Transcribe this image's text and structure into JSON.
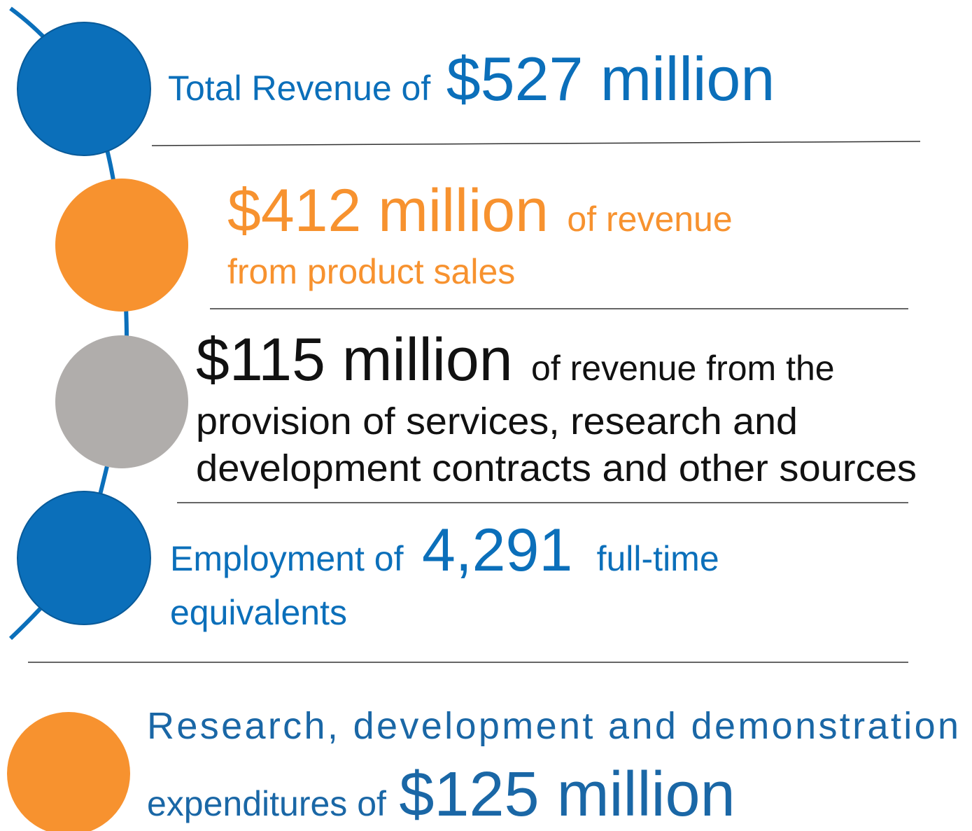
{
  "items": [
    [
      "Total Revenue of",
      "$527 million"
    ],
    [
      "$412 million",
      "of revenue",
      "from product sales"
    ],
    [
      "$115 million",
      "of revenue from the",
      "provision of services, research and",
      "development contracts and other sources"
    ],
    [
      "Employment of",
      "4,291",
      "full-time",
      "equivalents"
    ],
    [
      "Research, development and demonstration",
      "expenditures of",
      "$125 million"
    ]
  ]
}
